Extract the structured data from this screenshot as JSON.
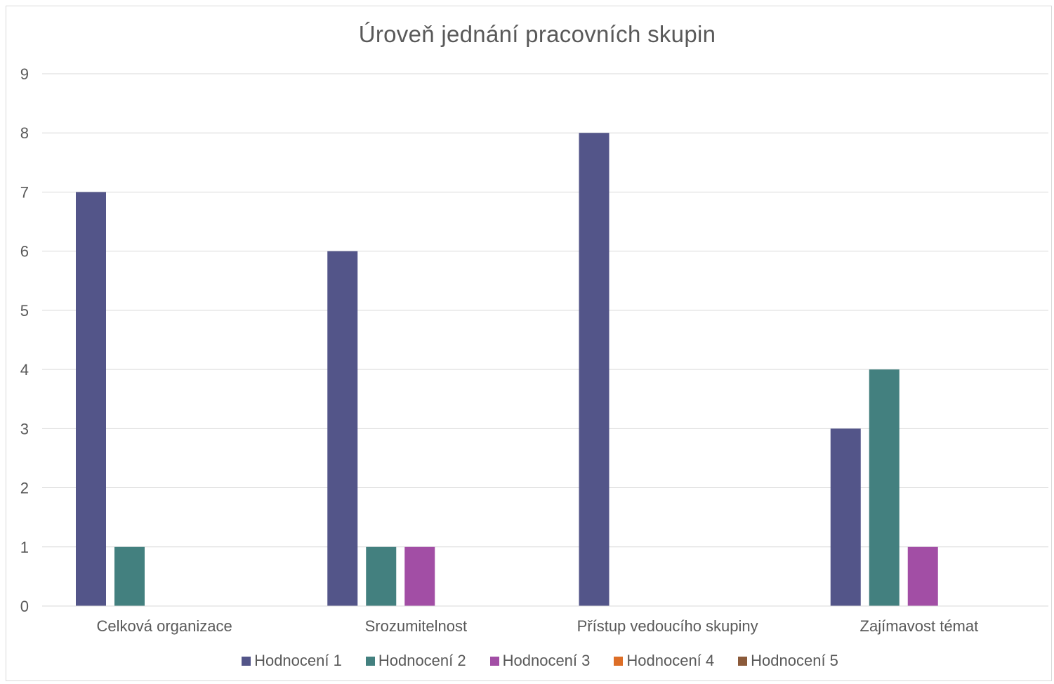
{
  "chart_data": {
    "type": "bar",
    "title": "Úroveň jednání pracovních skupin",
    "categories": [
      "Celková organizace",
      "Srozumitelnost",
      "Přístup vedoucího skupiny",
      "Zajímavost témat"
    ],
    "series": [
      {
        "name": "Hodnocení 1",
        "color": "#535589",
        "values": [
          7,
          6,
          8,
          3
        ]
      },
      {
        "name": "Hodnocení 2",
        "color": "#43807f",
        "values": [
          1,
          1,
          0,
          4
        ]
      },
      {
        "name": "Hodnocení 3",
        "color": "#a24ea5",
        "values": [
          0,
          1,
          0,
          1
        ]
      },
      {
        "name": "Hodnocení 4",
        "color": "#dd6e27",
        "values": [
          0,
          0,
          0,
          0
        ]
      },
      {
        "name": "Hodnocení 5",
        "color": "#8b5a3a",
        "values": [
          0,
          0,
          0,
          0
        ]
      }
    ],
    "ylim": [
      0,
      9
    ],
    "yticks": [
      0,
      1,
      2,
      3,
      4,
      5,
      6,
      7,
      8,
      9
    ],
    "grid": true,
    "legend_position": "bottom"
  }
}
